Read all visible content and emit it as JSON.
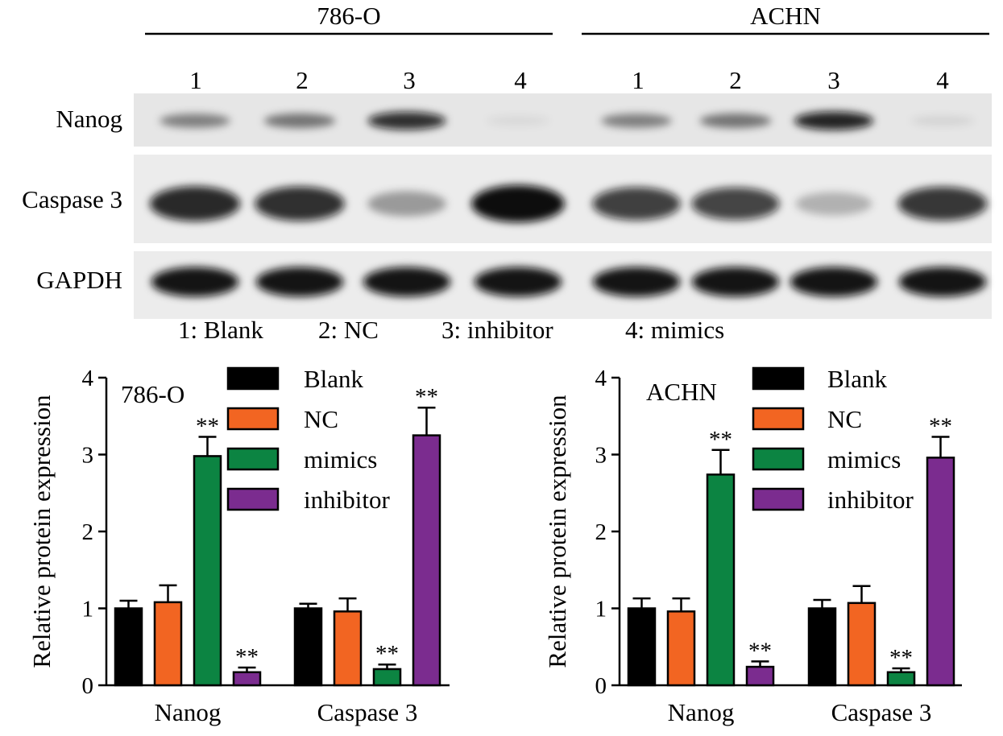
{
  "blot": {
    "cell_lines": [
      "786-O",
      "ACHN"
    ],
    "lane_numbers": [
      "1",
      "2",
      "3",
      "4",
      "1",
      "2",
      "3",
      "4"
    ],
    "rows": [
      {
        "label": "Nanog",
        "intensity": [
          0.45,
          0.5,
          0.85,
          0.06,
          0.45,
          0.5,
          0.9,
          0.08
        ]
      },
      {
        "label": "Caspase 3",
        "intensity": [
          0.88,
          0.85,
          0.35,
          1.0,
          0.78,
          0.76,
          0.25,
          0.82
        ]
      },
      {
        "label": "GAPDH",
        "intensity": [
          0.97,
          0.97,
          0.97,
          0.97,
          0.97,
          0.97,
          0.97,
          0.97
        ]
      }
    ],
    "legend_text": [
      "1: Blank",
      "2: NC",
      "3: inhibitor",
      "4: mimics"
    ]
  },
  "colors": {
    "Blank": "#000000",
    "NC": "#f26522",
    "mimics": "#0c8442",
    "inhibitor": "#7b2c8f"
  },
  "chart_data": [
    {
      "type": "bar",
      "title": "786-O",
      "xlabel": "",
      "ylabel": "Relative protein expression",
      "ylim": [
        0,
        4
      ],
      "yticks": [
        "0",
        "1",
        "2",
        "3",
        "4"
      ],
      "categories": [
        "Nanog",
        "Caspase 3"
      ],
      "legend": "top-right",
      "series": [
        {
          "name": "Blank",
          "values": [
            1.0,
            1.0
          ],
          "errors": [
            0.1,
            0.06
          ],
          "sig": [
            "",
            ""
          ]
        },
        {
          "name": "NC",
          "values": [
            1.08,
            0.96
          ],
          "errors": [
            0.22,
            0.17
          ],
          "sig": [
            "",
            ""
          ]
        },
        {
          "name": "mimics",
          "values": [
            2.98,
            0.21
          ],
          "errors": [
            0.25,
            0.06
          ],
          "sig": [
            "**",
            "**"
          ]
        },
        {
          "name": "inhibitor",
          "values": [
            0.17,
            3.25
          ],
          "errors": [
            0.06,
            0.36
          ],
          "sig": [
            "**",
            "**"
          ]
        }
      ]
    },
    {
      "type": "bar",
      "title": "ACHN",
      "xlabel": "",
      "ylabel": "Relative protein expression",
      "ylim": [
        0,
        4
      ],
      "yticks": [
        "0",
        "1",
        "2",
        "3",
        "4"
      ],
      "categories": [
        "Nanog",
        "Caspase 3"
      ],
      "legend": "top-right",
      "series": [
        {
          "name": "Blank",
          "values": [
            1.0,
            1.0
          ],
          "errors": [
            0.13,
            0.11
          ],
          "sig": [
            "",
            ""
          ]
        },
        {
          "name": "NC",
          "values": [
            0.96,
            1.07
          ],
          "errors": [
            0.17,
            0.22
          ],
          "sig": [
            "",
            ""
          ]
        },
        {
          "name": "mimics",
          "values": [
            2.74,
            0.17
          ],
          "errors": [
            0.32,
            0.05
          ],
          "sig": [
            "**",
            "**"
          ]
        },
        {
          "name": "inhibitor",
          "values": [
            0.24,
            2.96
          ],
          "errors": [
            0.07,
            0.27
          ],
          "sig": [
            "**",
            "**"
          ]
        }
      ]
    }
  ]
}
